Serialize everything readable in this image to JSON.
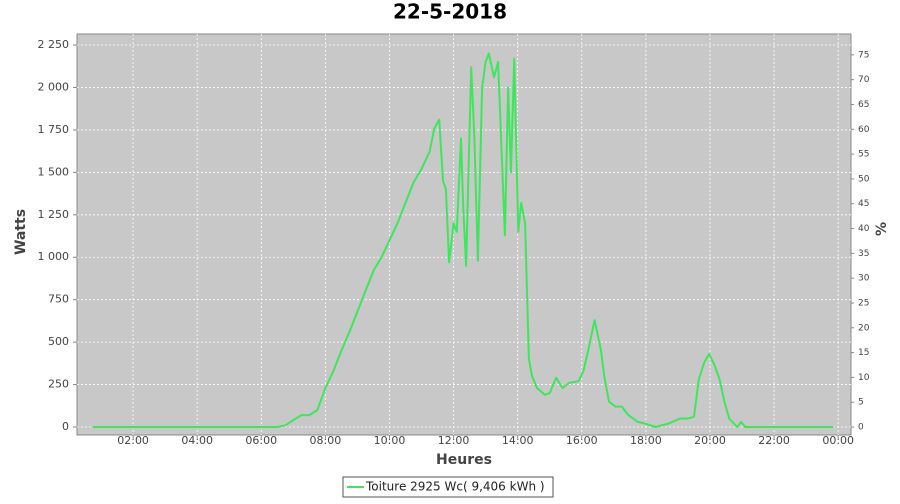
{
  "chart_data": {
    "type": "line",
    "title": "22-5-2018",
    "x_label": "Heures",
    "y_label": "Watts",
    "y2_label": "%",
    "grid": true,
    "legend_position": "bottom",
    "xlim": [
      0.25,
      24.4
    ],
    "xticks": [
      {
        "value": 2,
        "label": "02:00"
      },
      {
        "value": 4,
        "label": "04:00"
      },
      {
        "value": 6,
        "label": "06:00"
      },
      {
        "value": 8,
        "label": "08:00"
      },
      {
        "value": 10,
        "label": "10:00"
      },
      {
        "value": 12,
        "label": "12:00"
      },
      {
        "value": 14,
        "label": "14:00"
      },
      {
        "value": 16,
        "label": "16:00"
      },
      {
        "value": 18,
        "label": "18:00"
      },
      {
        "value": 20,
        "label": "20:00"
      },
      {
        "value": 22,
        "label": "22:00"
      },
      {
        "value": 24,
        "label": "00:00"
      }
    ],
    "ylim": [
      -47,
      2315
    ],
    "yticks": [
      0,
      250,
      500,
      750,
      {
        "value": 1000,
        "label": "1 000"
      },
      {
        "value": 1250,
        "label": "1 250"
      },
      {
        "value": 1500,
        "label": "1 500"
      },
      {
        "value": 1750,
        "label": "1 750"
      },
      {
        "value": 2000,
        "label": "2 000"
      },
      {
        "value": 2250,
        "label": "2 250"
      }
    ],
    "y2lim": [
      -1.6,
      79.2
    ],
    "y2ticks": [
      0,
      5,
      10,
      15,
      20,
      25,
      30,
      35,
      40,
      45,
      50,
      55,
      60,
      65,
      70,
      75
    ],
    "series": [
      {
        "name": "Toiture 2925 Wc( 9,406 kWh )",
        "color": "#3ee65c",
        "x": [
          0.75,
          2,
          4,
          6,
          6.5,
          6.75,
          7.0,
          7.25,
          7.5,
          7.75,
          8.0,
          8.25,
          8.5,
          8.75,
          9.0,
          9.25,
          9.5,
          9.75,
          10.0,
          10.25,
          10.5,
          10.75,
          11.0,
          11.25,
          11.4,
          11.55,
          11.67,
          11.76,
          11.86,
          12.0,
          12.1,
          12.23,
          12.3,
          12.39,
          12.55,
          12.65,
          12.76,
          12.89,
          13.0,
          13.1,
          13.26,
          13.39,
          13.6,
          13.7,
          13.79,
          13.89,
          14.02,
          14.11,
          14.23,
          14.35,
          14.45,
          14.6,
          14.85,
          15.0,
          15.2,
          15.4,
          15.6,
          15.9,
          16.05,
          16.2,
          16.4,
          16.6,
          16.7,
          16.85,
          17.05,
          17.25,
          17.45,
          17.75,
          17.98,
          18.3,
          18.7,
          19.07,
          19.3,
          19.5,
          19.65,
          19.82,
          19.97,
          20.13,
          20.3,
          20.45,
          20.6,
          20.85,
          20.97,
          21.1,
          23.85
        ],
        "values": [
          0,
          0,
          0,
          0,
          0,
          10,
          40,
          70,
          70,
          100,
          230,
          330,
          450,
          560,
          680,
          800,
          920,
          1000,
          1100,
          1200,
          1320,
          1440,
          1520,
          1620,
          1760,
          1810,
          1450,
          1400,
          970,
          1200,
          1150,
          1700,
          1300,
          950,
          2120,
          1700,
          980,
          2000,
          2150,
          2200,
          2060,
          2150,
          1130,
          2000,
          1500,
          2170,
          1150,
          1320,
          1200,
          400,
          300,
          230,
          190,
          200,
          290,
          230,
          260,
          270,
          330,
          450,
          630,
          450,
          300,
          150,
          120,
          120,
          70,
          30,
          20,
          0,
          20,
          50,
          50,
          60,
          280,
          380,
          430,
          370,
          280,
          150,
          50,
          0,
          30,
          0,
          0
        ]
      }
    ]
  }
}
